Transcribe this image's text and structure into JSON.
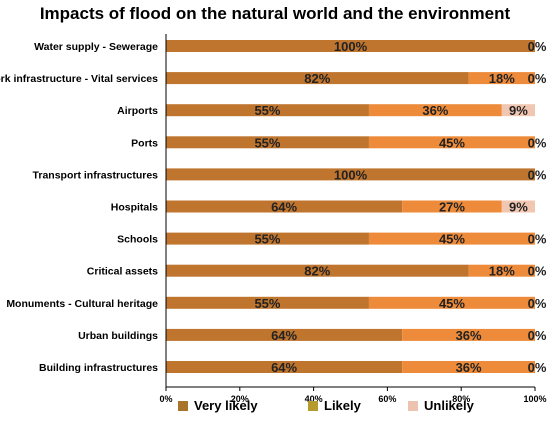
{
  "chart_data": {
    "type": "bar",
    "orientation": "horizontal",
    "stacked": true,
    "title": "Impacts of flood on the natural world and the environment",
    "xlabel": "",
    "ylabel": "",
    "xlim": [
      0,
      100
    ],
    "x_ticks": [
      "0%",
      "20%",
      "40%",
      "60%",
      "80%",
      "100%"
    ],
    "grid": false,
    "legend_position": "bottom",
    "categories": [
      "Water supply - Sewerage",
      "Network infrastructure - Vital services",
      "Airports",
      "Ports",
      "Transport infrastructures",
      "Hospitals",
      "Schools",
      "Critical assets",
      "Monuments - Cultural heritage",
      "Urban buildings",
      "Building infrastructures"
    ],
    "series": [
      {
        "name": "Very likely",
        "color": "#C0752F",
        "values": [
          100,
          82,
          55,
          55,
          100,
          64,
          55,
          82,
          55,
          64,
          64
        ]
      },
      {
        "name": "Likely",
        "color": "#ED8B3A",
        "values": [
          0,
          18,
          36,
          45,
          0,
          27,
          45,
          18,
          45,
          36,
          36
        ]
      },
      {
        "name": "Unlikely",
        "color": "#F2C7B2",
        "values": [
          0,
          0,
          9,
          0,
          0,
          9,
          0,
          0,
          0,
          0,
          0
        ]
      }
    ],
    "data_labels": [
      [
        "100%",
        "",
        "0%"
      ],
      [
        "82%",
        "18%",
        "0%"
      ],
      [
        "55%",
        "36%",
        "9%"
      ],
      [
        "55%",
        "45%",
        "0%"
      ],
      [
        "100%",
        "",
        "0%"
      ],
      [
        "64%",
        "27%",
        "9%"
      ],
      [
        "55%",
        "45%",
        "0%"
      ],
      [
        "82%",
        "18%",
        "0%"
      ],
      [
        "55%",
        "45%",
        "0%"
      ],
      [
        "64%",
        "36%",
        "0%"
      ],
      [
        "64%",
        "36%",
        "0%"
      ]
    ],
    "legend_swatch_colors": [
      "#A8732A",
      "#B59A2E",
      "#EBC3AE"
    ],
    "category_label_colors": {
      "Schools": "#FF00FF",
      "Critical assets": "#FF00FF",
      "Monuments - Cultural heritage": "#FF00FF",
      "Urban buildings": "#FF00FF",
      "Building infrastructures": "#FF00FF"
    }
  }
}
